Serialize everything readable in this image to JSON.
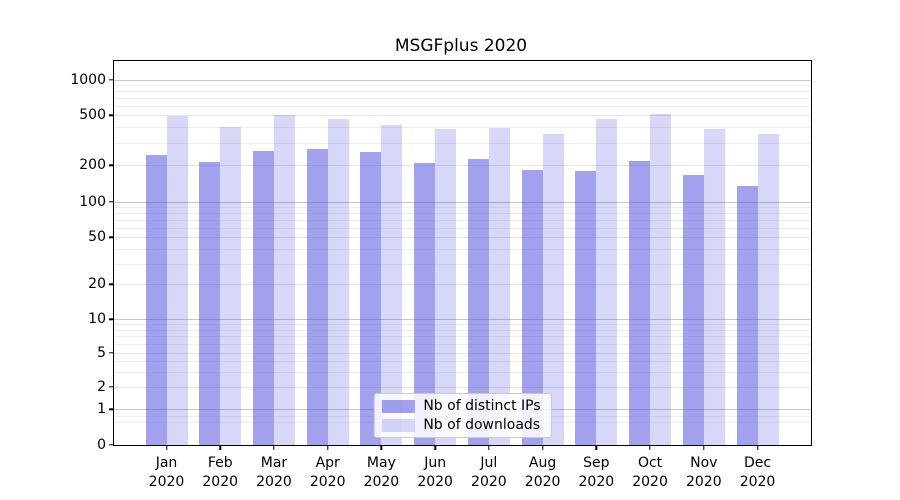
{
  "title": "MSGFplus 2020",
  "chart_data": {
    "type": "bar",
    "title": "MSGFplus 2020",
    "categories": [
      "Jan 2020",
      "Feb 2020",
      "Mar 2020",
      "Apr 2020",
      "May 2020",
      "Jun 2020",
      "Jul 2020",
      "Aug 2020",
      "Sep 2020",
      "Oct 2020",
      "Nov 2020",
      "Dec 2020"
    ],
    "series": [
      {
        "name": "Nb of distinct IPs",
        "color": "#4444dd",
        "alpha": 0.5,
        "values": [
          240,
          212,
          260,
          270,
          255,
          210,
          225,
          183,
          180,
          217,
          168,
          136
        ]
      },
      {
        "name": "Nb of downloads",
        "color": "#4444dd",
        "alpha": 0.21,
        "values": [
          495,
          405,
          505,
          465,
          420,
          390,
          395,
          353,
          465,
          510,
          388,
          355
        ]
      }
    ],
    "xlabel": "",
    "ylabel": "",
    "yscale": "symlog",
    "yticks": [
      0,
      1,
      2,
      5,
      10,
      20,
      50,
      100,
      200,
      500,
      1000
    ],
    "ylim": [
      0,
      1450
    ],
    "grid": true,
    "legend_position": "lower center"
  }
}
